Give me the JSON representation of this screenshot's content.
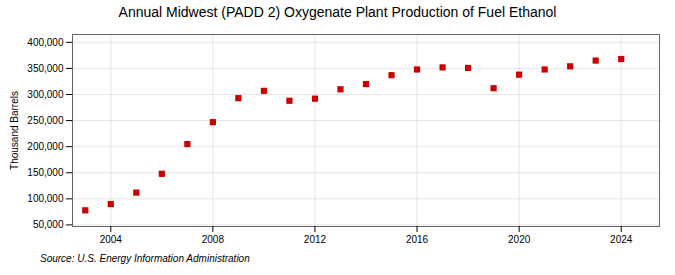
{
  "chart_data": {
    "type": "scatter",
    "title": "Annual Midwest (PADD 2) Oxygenate Plant Production of Fuel Ethanol",
    "ylabel": "Thousand Barrels",
    "source": "Source: U.S. Energy Information Administration",
    "x": [
      2003,
      2004,
      2005,
      2006,
      2007,
      2008,
      2009,
      2010,
      2011,
      2012,
      2013,
      2014,
      2015,
      2016,
      2017,
      2018,
      2019,
      2020,
      2021,
      2022,
      2023,
      2024
    ],
    "values": [
      78000,
      90000,
      112000,
      148000,
      205000,
      247000,
      293000,
      307000,
      288000,
      292000,
      310000,
      320000,
      337000,
      348000,
      352000,
      351000,
      312000,
      338000,
      348000,
      354000,
      365000,
      368000
    ],
    "color": "#cc0000",
    "marker": "square",
    "xlim": [
      2002.5,
      2025.5
    ],
    "ylim": [
      47000,
      415000
    ],
    "xticks": [
      2004,
      2008,
      2012,
      2016,
      2020,
      2024
    ],
    "yticks": [
      {
        "value": 50000,
        "label": "50,000"
      },
      {
        "value": 100000,
        "label": "100,000"
      },
      {
        "value": 150000,
        "label": "150,000"
      },
      {
        "value": 200000,
        "label": "200,000"
      },
      {
        "value": 250000,
        "label": "250,000"
      },
      {
        "value": 300000,
        "label": "300,000"
      },
      {
        "value": 350000,
        "label": "350,000"
      },
      {
        "value": 400000,
        "label": "400,000"
      }
    ],
    "grid": true
  }
}
